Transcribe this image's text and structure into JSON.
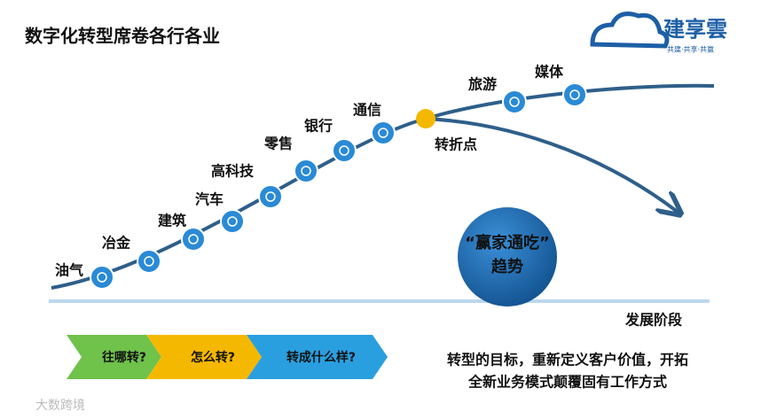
{
  "header": {
    "title": "数字化转型席卷各行各业",
    "logo_name": "建享雲",
    "logo_slogan": "共建·共享·共赢"
  },
  "curve": {
    "industries": [
      "油气",
      "冶金",
      "建筑",
      "汽车",
      "高科技",
      "零售",
      "银行",
      "通信",
      "旅游",
      "媒体"
    ],
    "turning_point": "转折点",
    "trend_line1": "“赢家通吃”",
    "trend_line2": "趋势",
    "axis_label": "发展阶段"
  },
  "steps": [
    "往哪转?",
    "怎么转?",
    "转成什么样?"
  ],
  "summary": [
    "转型的目标，重新定义客户价值，开拓",
    "全新业务模式颠覆固有工作方式"
  ],
  "watermark": "大数跨境"
}
